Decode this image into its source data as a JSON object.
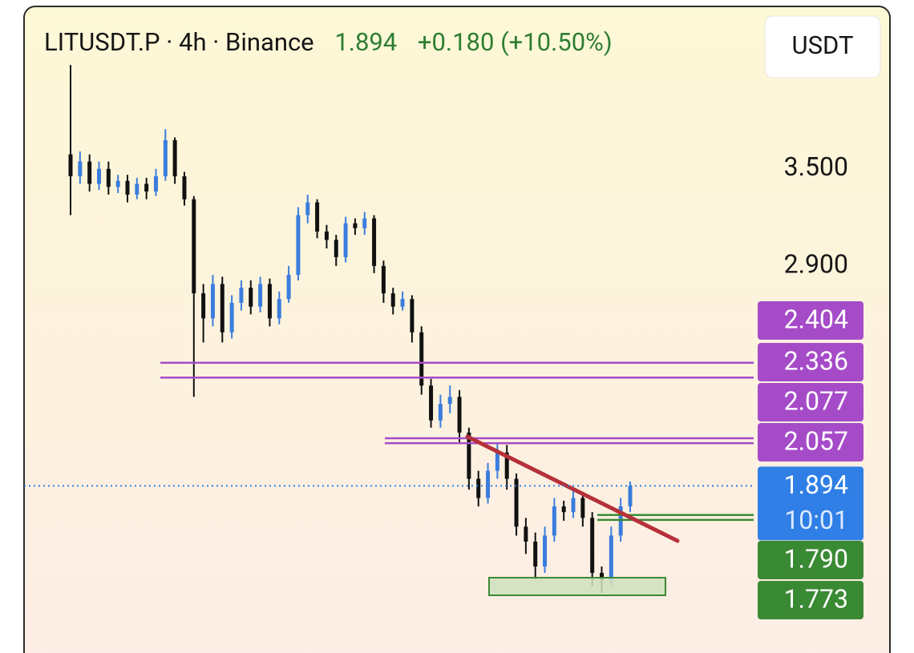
{
  "chart_data": {
    "type": "candlestick",
    "title": {
      "symbol": "LITUSDT.P · 4h · Binance",
      "last": 1.894,
      "change": "+0.180 (+10.50%)"
    },
    "currency": "USDT",
    "log_scale": true,
    "ylim": [
      1.37,
      4.78
    ],
    "yticks": [
      {
        "value": 3.5,
        "label": "3.500"
      },
      {
        "value": 2.9,
        "label": "2.900"
      }
    ],
    "up_color": "#3b7ddd",
    "down_color": "#111111",
    "open": [
      3.6,
      3.45,
      3.55,
      3.4,
      3.5,
      3.38,
      3.42,
      3.33,
      3.4,
      3.35,
      3.45,
      3.7,
      3.45,
      3.3,
      2.75,
      2.62,
      2.8,
      2.55,
      2.7,
      2.78,
      2.68,
      2.8,
      2.62,
      2.72,
      2.85,
      3.2,
      3.28,
      3.1,
      3.05,
      2.95,
      3.15,
      3.12,
      3.18,
      2.9,
      2.75,
      2.68,
      2.72,
      2.55,
      2.3,
      2.15,
      2.22,
      2.25,
      2.1,
      1.92,
      1.85,
      1.95,
      2.02,
      1.92,
      1.75,
      1.7,
      1.62,
      1.72,
      1.82,
      1.8,
      1.85,
      1.78,
      1.6,
      1.58,
      1.72,
      1.82
    ],
    "high": [
      4.28,
      3.62,
      3.6,
      3.55,
      3.55,
      3.46,
      3.46,
      3.44,
      3.44,
      3.5,
      3.78,
      3.72,
      3.48,
      3.32,
      2.8,
      2.85,
      2.84,
      2.74,
      2.82,
      2.82,
      2.84,
      2.83,
      2.76,
      2.9,
      3.25,
      3.33,
      3.3,
      3.14,
      3.08,
      3.19,
      3.18,
      3.22,
      3.2,
      2.93,
      2.78,
      2.76,
      2.74,
      2.58,
      2.33,
      2.26,
      2.3,
      2.28,
      2.12,
      1.95,
      1.98,
      2.06,
      2.05,
      1.94,
      1.78,
      1.73,
      1.75,
      1.85,
      1.84,
      1.88,
      1.87,
      1.8,
      1.62,
      1.75,
      1.85,
      1.91
    ],
    "low": [
      3.2,
      3.4,
      3.35,
      3.36,
      3.33,
      3.34,
      3.28,
      3.3,
      3.3,
      3.32,
      3.42,
      3.4,
      3.26,
      2.25,
      2.5,
      2.58,
      2.5,
      2.52,
      2.66,
      2.64,
      2.65,
      2.58,
      2.59,
      2.7,
      2.82,
      3.15,
      3.06,
      3.0,
      2.9,
      2.92,
      3.08,
      3.08,
      2.86,
      2.7,
      2.64,
      2.66,
      2.5,
      2.26,
      2.12,
      2.12,
      2.18,
      2.06,
      1.88,
      1.82,
      1.83,
      1.92,
      1.88,
      1.72,
      1.66,
      1.58,
      1.6,
      1.7,
      1.77,
      1.78,
      1.75,
      1.56,
      1.54,
      1.56,
      1.7,
      1.8
    ],
    "close": [
      3.45,
      3.55,
      3.4,
      3.5,
      3.38,
      3.42,
      3.33,
      3.4,
      3.35,
      3.45,
      3.7,
      3.45,
      3.3,
      2.75,
      2.62,
      2.8,
      2.55,
      2.7,
      2.78,
      2.68,
      2.8,
      2.62,
      2.72,
      2.85,
      3.2,
      3.28,
      3.1,
      3.05,
      2.95,
      3.15,
      3.12,
      3.18,
      2.9,
      2.75,
      2.68,
      2.72,
      2.55,
      2.3,
      2.15,
      2.22,
      2.25,
      2.1,
      1.92,
      1.85,
      1.95,
      2.02,
      1.92,
      1.75,
      1.7,
      1.62,
      1.72,
      1.82,
      1.8,
      1.85,
      1.78,
      1.6,
      1.58,
      1.72,
      1.82,
      1.894
    ],
    "levels": [
      {
        "value": 2.404,
        "color": "#a64bc8"
      },
      {
        "value": 2.336,
        "color": "#a64bc8"
      },
      {
        "value": 2.077,
        "color": "#a64bc8"
      },
      {
        "value": 2.057,
        "color": "#a64bc8"
      },
      {
        "value": {
          "value": 1.79,
          "label": "1.790"
        },
        "color": "#3a8a34"
      },
      {
        "value": 1.773,
        "color": "#3a8a34"
      }
    ],
    "current": {
      "value": 1.894,
      "countdown": "10:01",
      "color": "#2f7fe6"
    }
  }
}
